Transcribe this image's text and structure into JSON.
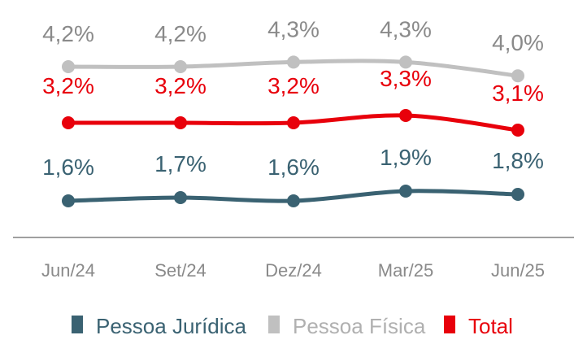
{
  "chart_data": {
    "type": "line",
    "categories": [
      "Jun/24",
      "Set/24",
      "Dez/24",
      "Mar/25",
      "Jun/25"
    ],
    "series": [
      {
        "name": "Pessoa Física",
        "color": "#c0c0c0",
        "values": [
          4.2,
          4.2,
          4.3,
          4.3,
          4.0
        ],
        "labels": [
          "4,2%",
          "4,2%",
          "4,3%",
          "4,3%",
          "4,0%"
        ]
      },
      {
        "name": "Total",
        "color": "#e8000b",
        "values": [
          3.2,
          3.2,
          3.2,
          3.3,
          3.1
        ],
        "labels": [
          "3,2%",
          "3,2%",
          "3,2%",
          "3,3%",
          "3,1%"
        ]
      },
      {
        "name": "Pessoa Jurídica",
        "color": "#3a6272",
        "values": [
          1.6,
          1.7,
          1.6,
          1.9,
          1.8
        ],
        "labels": [
          "1,6%",
          "1,7%",
          "1,6%",
          "1,9%",
          "1,8%"
        ]
      }
    ],
    "legend": {
      "placement": "bottom",
      "order": [
        "Pessoa Jurídica",
        "Pessoa Física",
        "Total"
      ]
    },
    "grid": false,
    "label_color_pf": "#8a8a8a"
  }
}
